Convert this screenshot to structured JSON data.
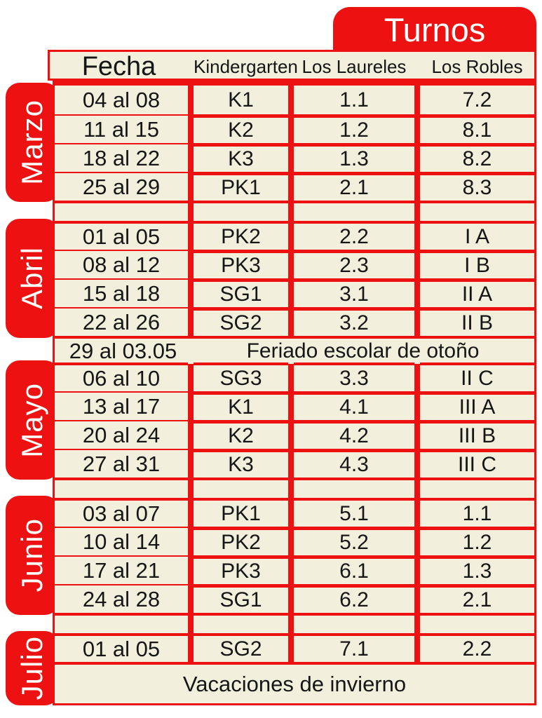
{
  "title_tab": {
    "label": "Turnos"
  },
  "colors": {
    "accent_red": "#ee1111",
    "cell_cream": "#f2efdc",
    "text": "#161616",
    "tab_text": "#ffffff"
  },
  "header": {
    "columns": [
      "Fecha",
      "Kindergarten",
      "Los Laureles",
      "Los Robles"
    ]
  },
  "months": [
    {
      "name": "Marzo"
    },
    {
      "name": "Abril"
    },
    {
      "name": "Mayo"
    },
    {
      "name": "Junio"
    },
    {
      "name": "Julio"
    }
  ],
  "rows": [
    {
      "type": "data",
      "block_start": true,
      "date": "04 al 08",
      "kindergarten": "K1",
      "laureles": "1.1",
      "robles": "7.2"
    },
    {
      "type": "data",
      "block_start": false,
      "date": "11 al 15",
      "kindergarten": "K2",
      "laureles": "1.2",
      "robles": "8.1"
    },
    {
      "type": "data",
      "block_start": false,
      "date": "18 al 22",
      "kindergarten": "K3",
      "laureles": "1.3",
      "robles": "8.2"
    },
    {
      "type": "data",
      "block_start": false,
      "date": "25 al 29",
      "kindergarten": "PK1",
      "laureles": "2.1",
      "robles": "8.3"
    },
    {
      "type": "empty"
    },
    {
      "type": "data",
      "block_start": true,
      "date": "01 al 05",
      "kindergarten": "PK2",
      "laureles": "2.2",
      "robles": "I A"
    },
    {
      "type": "data",
      "block_start": false,
      "date": "08 al 12",
      "kindergarten": "PK3",
      "laureles": "2.3",
      "robles": "I B"
    },
    {
      "type": "data",
      "block_start": false,
      "date": "15 al 18",
      "kindergarten": "SG1",
      "laureles": "3.1",
      "robles": "II A"
    },
    {
      "type": "data",
      "block_start": false,
      "date": "22 al 26",
      "kindergarten": "SG2",
      "laureles": "3.2",
      "robles": "II B"
    },
    {
      "type": "feriado",
      "date": "29 al 03.05",
      "label": "Feriado escolar de otoño"
    },
    {
      "type": "data",
      "block_start": true,
      "date": "06 al 10",
      "kindergarten": "SG3",
      "laureles": "3.3",
      "robles": "II C"
    },
    {
      "type": "data",
      "block_start": false,
      "date": "13 al 17",
      "kindergarten": "K1",
      "laureles": "4.1",
      "robles": "III A"
    },
    {
      "type": "data",
      "block_start": false,
      "date": "20 al 24",
      "kindergarten": "K2",
      "laureles": "4.2",
      "robles": "III B"
    },
    {
      "type": "data",
      "block_start": false,
      "date": "27 al 31",
      "kindergarten": "K3",
      "laureles": "4.3",
      "robles": "III C"
    },
    {
      "type": "empty"
    },
    {
      "type": "data",
      "block_start": true,
      "date": "03 al 07",
      "kindergarten": "PK1",
      "laureles": "5.1",
      "robles": "1.1"
    },
    {
      "type": "data",
      "block_start": false,
      "date": "10 al 14",
      "kindergarten": "PK2",
      "laureles": "5.2",
      "robles": "1.2"
    },
    {
      "type": "data",
      "block_start": false,
      "date": "17 al 21",
      "kindergarten": "PK3",
      "laureles": "6.1",
      "robles": "1.3"
    },
    {
      "type": "data",
      "block_start": false,
      "date": "24 al 28",
      "kindergarten": "SG1",
      "laureles": "6.2",
      "robles": "2.1"
    },
    {
      "type": "empty"
    },
    {
      "type": "data",
      "block_start": true,
      "date": "01 al 05",
      "kindergarten": "SG2",
      "laureles": "7.1",
      "robles": "2.2"
    },
    {
      "type": "vacaciones",
      "label": "Vacaciones de invierno"
    }
  ]
}
